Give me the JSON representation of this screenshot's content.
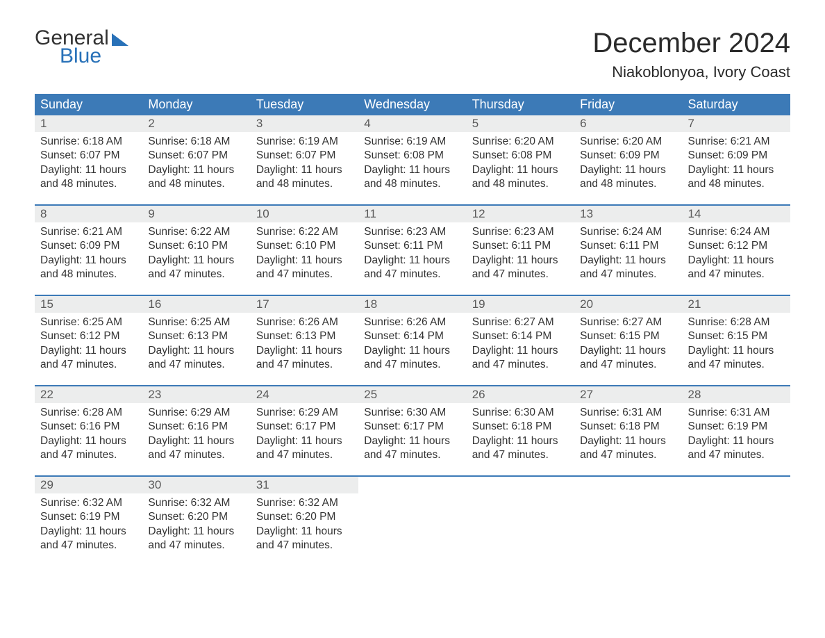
{
  "logo": {
    "text_general": "General",
    "text_blue": "Blue"
  },
  "header": {
    "month_title": "December 2024",
    "location": "Niakoblonyoa, Ivory Coast"
  },
  "colors": {
    "header_bg": "#3c7ab7",
    "row_accent": "#3c7ab7",
    "daynum_bg": "#eceded",
    "logo_blue": "#2871b8",
    "text": "#333333",
    "background": "#ffffff"
  },
  "weekdays": [
    "Sunday",
    "Monday",
    "Tuesday",
    "Wednesday",
    "Thursday",
    "Friday",
    "Saturday"
  ],
  "weeks": [
    [
      {
        "num": "1",
        "sunrise": "Sunrise: 6:18 AM",
        "sunset": "Sunset: 6:07 PM",
        "daylight1": "Daylight: 11 hours",
        "daylight2": "and 48 minutes."
      },
      {
        "num": "2",
        "sunrise": "Sunrise: 6:18 AM",
        "sunset": "Sunset: 6:07 PM",
        "daylight1": "Daylight: 11 hours",
        "daylight2": "and 48 minutes."
      },
      {
        "num": "3",
        "sunrise": "Sunrise: 6:19 AM",
        "sunset": "Sunset: 6:07 PM",
        "daylight1": "Daylight: 11 hours",
        "daylight2": "and 48 minutes."
      },
      {
        "num": "4",
        "sunrise": "Sunrise: 6:19 AM",
        "sunset": "Sunset: 6:08 PM",
        "daylight1": "Daylight: 11 hours",
        "daylight2": "and 48 minutes."
      },
      {
        "num": "5",
        "sunrise": "Sunrise: 6:20 AM",
        "sunset": "Sunset: 6:08 PM",
        "daylight1": "Daylight: 11 hours",
        "daylight2": "and 48 minutes."
      },
      {
        "num": "6",
        "sunrise": "Sunrise: 6:20 AM",
        "sunset": "Sunset: 6:09 PM",
        "daylight1": "Daylight: 11 hours",
        "daylight2": "and 48 minutes."
      },
      {
        "num": "7",
        "sunrise": "Sunrise: 6:21 AM",
        "sunset": "Sunset: 6:09 PM",
        "daylight1": "Daylight: 11 hours",
        "daylight2": "and 48 minutes."
      }
    ],
    [
      {
        "num": "8",
        "sunrise": "Sunrise: 6:21 AM",
        "sunset": "Sunset: 6:09 PM",
        "daylight1": "Daylight: 11 hours",
        "daylight2": "and 48 minutes."
      },
      {
        "num": "9",
        "sunrise": "Sunrise: 6:22 AM",
        "sunset": "Sunset: 6:10 PM",
        "daylight1": "Daylight: 11 hours",
        "daylight2": "and 47 minutes."
      },
      {
        "num": "10",
        "sunrise": "Sunrise: 6:22 AM",
        "sunset": "Sunset: 6:10 PM",
        "daylight1": "Daylight: 11 hours",
        "daylight2": "and 47 minutes."
      },
      {
        "num": "11",
        "sunrise": "Sunrise: 6:23 AM",
        "sunset": "Sunset: 6:11 PM",
        "daylight1": "Daylight: 11 hours",
        "daylight2": "and 47 minutes."
      },
      {
        "num": "12",
        "sunrise": "Sunrise: 6:23 AM",
        "sunset": "Sunset: 6:11 PM",
        "daylight1": "Daylight: 11 hours",
        "daylight2": "and 47 minutes."
      },
      {
        "num": "13",
        "sunrise": "Sunrise: 6:24 AM",
        "sunset": "Sunset: 6:11 PM",
        "daylight1": "Daylight: 11 hours",
        "daylight2": "and 47 minutes."
      },
      {
        "num": "14",
        "sunrise": "Sunrise: 6:24 AM",
        "sunset": "Sunset: 6:12 PM",
        "daylight1": "Daylight: 11 hours",
        "daylight2": "and 47 minutes."
      }
    ],
    [
      {
        "num": "15",
        "sunrise": "Sunrise: 6:25 AM",
        "sunset": "Sunset: 6:12 PM",
        "daylight1": "Daylight: 11 hours",
        "daylight2": "and 47 minutes."
      },
      {
        "num": "16",
        "sunrise": "Sunrise: 6:25 AM",
        "sunset": "Sunset: 6:13 PM",
        "daylight1": "Daylight: 11 hours",
        "daylight2": "and 47 minutes."
      },
      {
        "num": "17",
        "sunrise": "Sunrise: 6:26 AM",
        "sunset": "Sunset: 6:13 PM",
        "daylight1": "Daylight: 11 hours",
        "daylight2": "and 47 minutes."
      },
      {
        "num": "18",
        "sunrise": "Sunrise: 6:26 AM",
        "sunset": "Sunset: 6:14 PM",
        "daylight1": "Daylight: 11 hours",
        "daylight2": "and 47 minutes."
      },
      {
        "num": "19",
        "sunrise": "Sunrise: 6:27 AM",
        "sunset": "Sunset: 6:14 PM",
        "daylight1": "Daylight: 11 hours",
        "daylight2": "and 47 minutes."
      },
      {
        "num": "20",
        "sunrise": "Sunrise: 6:27 AM",
        "sunset": "Sunset: 6:15 PM",
        "daylight1": "Daylight: 11 hours",
        "daylight2": "and 47 minutes."
      },
      {
        "num": "21",
        "sunrise": "Sunrise: 6:28 AM",
        "sunset": "Sunset: 6:15 PM",
        "daylight1": "Daylight: 11 hours",
        "daylight2": "and 47 minutes."
      }
    ],
    [
      {
        "num": "22",
        "sunrise": "Sunrise: 6:28 AM",
        "sunset": "Sunset: 6:16 PM",
        "daylight1": "Daylight: 11 hours",
        "daylight2": "and 47 minutes."
      },
      {
        "num": "23",
        "sunrise": "Sunrise: 6:29 AM",
        "sunset": "Sunset: 6:16 PM",
        "daylight1": "Daylight: 11 hours",
        "daylight2": "and 47 minutes."
      },
      {
        "num": "24",
        "sunrise": "Sunrise: 6:29 AM",
        "sunset": "Sunset: 6:17 PM",
        "daylight1": "Daylight: 11 hours",
        "daylight2": "and 47 minutes."
      },
      {
        "num": "25",
        "sunrise": "Sunrise: 6:30 AM",
        "sunset": "Sunset: 6:17 PM",
        "daylight1": "Daylight: 11 hours",
        "daylight2": "and 47 minutes."
      },
      {
        "num": "26",
        "sunrise": "Sunrise: 6:30 AM",
        "sunset": "Sunset: 6:18 PM",
        "daylight1": "Daylight: 11 hours",
        "daylight2": "and 47 minutes."
      },
      {
        "num": "27",
        "sunrise": "Sunrise: 6:31 AM",
        "sunset": "Sunset: 6:18 PM",
        "daylight1": "Daylight: 11 hours",
        "daylight2": "and 47 minutes."
      },
      {
        "num": "28",
        "sunrise": "Sunrise: 6:31 AM",
        "sunset": "Sunset: 6:19 PM",
        "daylight1": "Daylight: 11 hours",
        "daylight2": "and 47 minutes."
      }
    ],
    [
      {
        "num": "29",
        "sunrise": "Sunrise: 6:32 AM",
        "sunset": "Sunset: 6:19 PM",
        "daylight1": "Daylight: 11 hours",
        "daylight2": "and 47 minutes."
      },
      {
        "num": "30",
        "sunrise": "Sunrise: 6:32 AM",
        "sunset": "Sunset: 6:20 PM",
        "daylight1": "Daylight: 11 hours",
        "daylight2": "and 47 minutes."
      },
      {
        "num": "31",
        "sunrise": "Sunrise: 6:32 AM",
        "sunset": "Sunset: 6:20 PM",
        "daylight1": "Daylight: 11 hours",
        "daylight2": "and 47 minutes."
      },
      {
        "empty": true
      },
      {
        "empty": true
      },
      {
        "empty": true
      },
      {
        "empty": true
      }
    ]
  ]
}
